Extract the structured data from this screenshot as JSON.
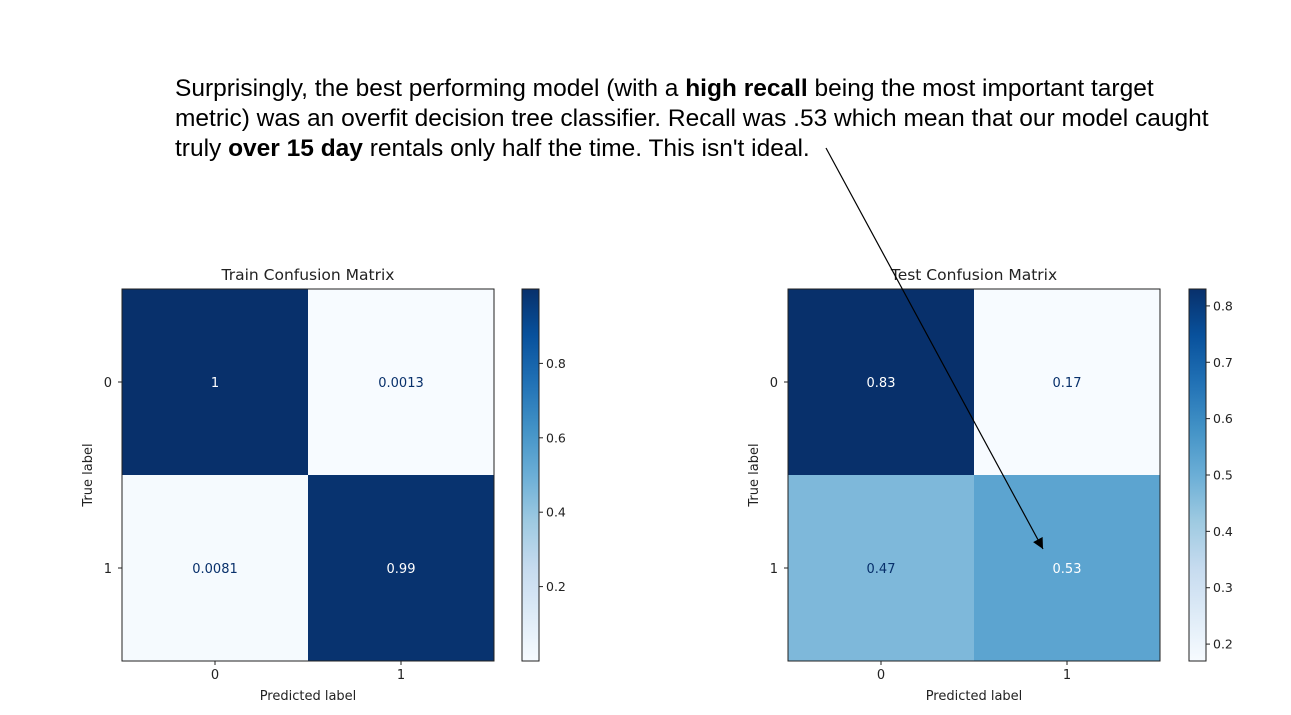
{
  "slide": {
    "text_parts": [
      {
        "text": "Surprisingly, the best performing model (with a ",
        "bold": false
      },
      {
        "text": "high recall",
        "bold": true
      },
      {
        "text": " being the most important target metric) was an overfit decision tree classifier. Recall was .53 which mean that our model caught truly ",
        "bold": false
      },
      {
        "text": "over 15 day",
        "bold": true
      },
      {
        "text": " rentals only half the time. This isn't ideal.",
        "bold": false
      }
    ]
  },
  "chart_data": [
    {
      "type": "heatmap",
      "title": "Train Confusion Matrix",
      "xlabel": "Predicted label",
      "ylabel": "True label",
      "x_categories": [
        "0",
        "1"
      ],
      "y_categories": [
        "0",
        "1"
      ],
      "values": [
        [
          1,
          0.0013
        ],
        [
          0.0081,
          0.99
        ]
      ],
      "value_labels": [
        [
          "1",
          "0.0013"
        ],
        [
          "0.0081",
          "0.99"
        ]
      ],
      "colormap": "Blues",
      "colorbar": {
        "range": [
          0,
          1
        ],
        "ticks": [
          0.2,
          0.4,
          0.6,
          0.8
        ]
      }
    },
    {
      "type": "heatmap",
      "title": "Test Confusion Matrix",
      "xlabel": "Predicted label",
      "ylabel": "True label",
      "x_categories": [
        "0",
        "1"
      ],
      "y_categories": [
        "0",
        "1"
      ],
      "values": [
        [
          0.83,
          0.17
        ],
        [
          0.47,
          0.53
        ]
      ],
      "value_labels": [
        [
          "0.83",
          "0.17"
        ],
        [
          "0.47",
          "0.53"
        ]
      ],
      "colormap": "Blues",
      "colorbar": {
        "range": [
          0.17,
          0.83
        ],
        "ticks": [
          0.2,
          0.3,
          0.4,
          0.5,
          0.6,
          0.7,
          0.8
        ]
      }
    }
  ]
}
